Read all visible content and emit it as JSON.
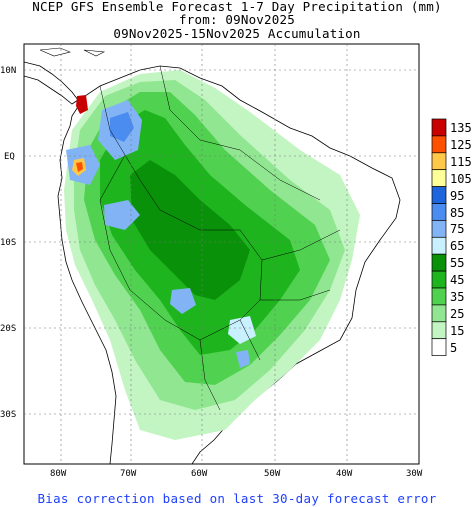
{
  "header": {
    "line1": "NCEP GFS Ensemble Forecast 1-7 Day Precipitation (mm)",
    "line2": "from: 09Nov2025",
    "line3": "09Nov2025-15Nov2025 Accumulation"
  },
  "axes": {
    "lon_labels": [
      "80W",
      "70W",
      "60W",
      "50W",
      "40W",
      "30W"
    ],
    "lat_labels": [
      "10N",
      "EQ",
      "10S",
      "20S",
      "30S"
    ]
  },
  "legend": {
    "levels": [
      {
        "label": "135",
        "color": "#c80000"
      },
      {
        "label": "125",
        "color": "#ff5000"
      },
      {
        "label": "115",
        "color": "#ffc848"
      },
      {
        "label": "105",
        "color": "#ffff9a"
      },
      {
        "label": "95",
        "color": "#1e64dc"
      },
      {
        "label": "85",
        "color": "#4b8cf0"
      },
      {
        "label": "75",
        "color": "#82b4f5"
      },
      {
        "label": "65",
        "color": "#c8f0ff"
      },
      {
        "label": "55",
        "color": "#0a910a"
      },
      {
        "label": "45",
        "color": "#1eb41e"
      },
      {
        "label": "35",
        "color": "#50d250"
      },
      {
        "label": "25",
        "color": "#91e691"
      },
      {
        "label": "15",
        "color": "#c3f5c3"
      },
      {
        "label": "5",
        "color": "#ffffff"
      }
    ]
  },
  "footer": "Bias correction based on last 30-day forecast error"
}
